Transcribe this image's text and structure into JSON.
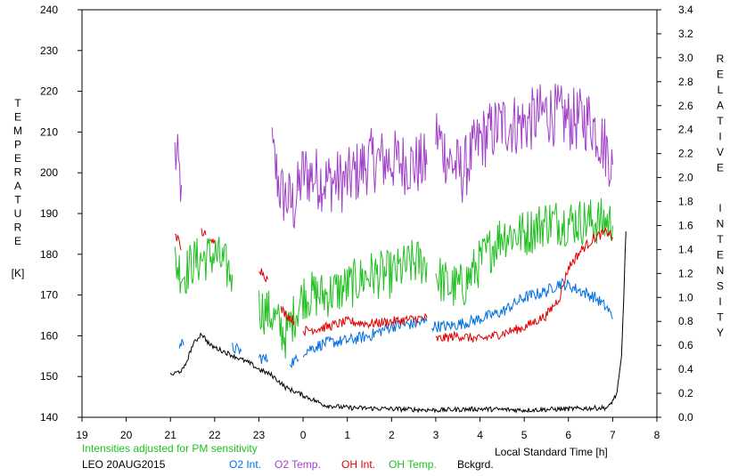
{
  "chart_data": {
    "type": "line",
    "left_axis": {
      "label_letters": [
        "T",
        "E",
        "M",
        "P",
        "E",
        "R",
        "A",
        "T",
        "U",
        "R",
        "E"
      ],
      "unit": "[K]",
      "ylim": [
        140,
        240
      ],
      "ticks": [
        "140",
        "150",
        "160",
        "170",
        "180",
        "190",
        "200",
        "210",
        "220",
        "230",
        "240"
      ]
    },
    "right_axis": {
      "label_words": [
        [
          "R",
          "E",
          "L",
          "A",
          "T",
          "I",
          "V",
          "E"
        ],
        [
          "I",
          "N",
          "T",
          "E",
          "N",
          "S",
          "I",
          "T",
          "Y"
        ]
      ],
      "ylim": [
        0.0,
        3.4
      ],
      "ticks": [
        "0.0",
        "0.2",
        "0.4",
        "0.6",
        "0.8",
        "1.0",
        "1.2",
        "1.4",
        "1.6",
        "1.8",
        "2.0",
        "2.2",
        "2.4",
        "2.6",
        "2.8",
        "3.0",
        "3.2",
        "3.4"
      ]
    },
    "x_axis": {
      "label": "Local Standard Time [h]",
      "ticks": [
        "19",
        "20",
        "21",
        "22",
        "23",
        "0",
        "1",
        "2",
        "3",
        "4",
        "5",
        "6",
        "7",
        "8"
      ]
    },
    "note": "Intensities adjusted for PM sensitivity",
    "site_date": "LEO 20AUG2015",
    "legend": [
      {
        "name": "O2 Int.",
        "color": "#0070e0"
      },
      {
        "name": "O2 Temp.",
        "color": "#a040c8"
      },
      {
        "name": "OH Int.",
        "color": "#e00000"
      },
      {
        "name": "OH Temp.",
        "color": "#20c020"
      },
      {
        "name": "Bckgrd.",
        "color": "#000000"
      }
    ],
    "series": [
      {
        "name": "O2 Temp.",
        "axis": "left",
        "color": "#a040c8",
        "noise": 8,
        "segments": [
          [
            [
              21.1,
              205
            ],
            [
              21.25,
              197
            ]
          ],
          [
            [
              23.3,
              205
            ],
            [
              23.5,
              195
            ],
            [
              23.8,
              192
            ],
            [
              24.0,
              200
            ],
            [
              24.5,
              198
            ],
            [
              25.0,
              198
            ],
            [
              25.5,
              203
            ],
            [
              26.0,
              203
            ],
            [
              26.5,
              202
            ],
            [
              26.8,
              202
            ]
          ],
          [
            [
              27.0,
              210
            ],
            [
              27.3,
              203
            ],
            [
              27.6,
              200
            ],
            [
              28.0,
              208
            ],
            [
              28.5,
              212
            ],
            [
              29.0,
              212
            ],
            [
              29.5,
              215
            ],
            [
              30.0,
              213
            ],
            [
              30.5,
              213
            ],
            [
              30.9,
              205
            ],
            [
              31.0,
              202
            ]
          ]
        ]
      },
      {
        "name": "OH Temp.",
        "axis": "left",
        "color": "#20c020",
        "noise": 6,
        "segments": [
          [
            [
              21.1,
              178
            ],
            [
              21.3,
              175
            ],
            [
              21.5,
              178
            ],
            [
              22.0,
              180
            ],
            [
              22.4,
              175
            ]
          ],
          [
            [
              23.0,
              180
            ]
          ],
          [
            [
              23.0,
              167
            ],
            [
              23.3,
              165
            ],
            [
              23.6,
              160
            ],
            [
              24.0,
              170
            ],
            [
              24.5,
              170
            ],
            [
              25.0,
              172
            ],
            [
              25.5,
              175
            ],
            [
              26.0,
              175
            ],
            [
              26.5,
              178
            ],
            [
              26.8,
              178
            ]
          ],
          [
            [
              27.0,
              175
            ],
            [
              27.3,
              172
            ],
            [
              27.6,
              172
            ],
            [
              28.0,
              178
            ],
            [
              28.5,
              185
            ],
            [
              29.0,
              185
            ],
            [
              29.5,
              188
            ],
            [
              30.0,
              188
            ],
            [
              30.5,
              188
            ],
            [
              30.9,
              188
            ],
            [
              31.0,
              187
            ]
          ]
        ]
      },
      {
        "name": "O2 Int.",
        "axis": "right",
        "color": "#0070e0",
        "noise": 0.05,
        "segments": [
          [
            [
              21.2,
              0.62
            ],
            [
              21.3,
              0.6
            ]
          ],
          [
            [
              22.4,
              0.58
            ],
            [
              22.6,
              0.55
            ]
          ],
          [
            [
              23.0,
              0.5
            ],
            [
              23.2,
              0.48
            ]
          ],
          [
            [
              23.7,
              0.46
            ],
            [
              23.9,
              0.48
            ]
          ],
          [
            [
              24.0,
              0.55
            ],
            [
              24.5,
              0.62
            ],
            [
              25.0,
              0.64
            ],
            [
              25.5,
              0.68
            ],
            [
              26.0,
              0.76
            ],
            [
              26.5,
              0.78
            ],
            [
              26.8,
              0.8
            ]
          ],
          [
            [
              26.9,
              0.76
            ],
            [
              27.3,
              0.76
            ],
            [
              27.8,
              0.8
            ],
            [
              28.5,
              0.88
            ],
            [
              29.0,
              1.0
            ],
            [
              29.5,
              1.05
            ],
            [
              29.8,
              1.12
            ],
            [
              30.0,
              1.1
            ],
            [
              30.3,
              1.05
            ],
            [
              30.6,
              1.0
            ],
            [
              30.9,
              0.9
            ],
            [
              31.0,
              0.82
            ]
          ]
        ]
      },
      {
        "name": "OH Int.",
        "axis": "right",
        "color": "#e00000",
        "noise": 0.04,
        "segments": [
          [
            [
              21.1,
              1.55
            ],
            [
              21.25,
              1.4
            ]
          ],
          [
            [
              21.7,
              1.55
            ],
            [
              21.8,
              1.52
            ]
          ],
          [
            [
              21.9,
              1.45
            ],
            [
              22.0,
              1.48
            ]
          ],
          [
            [
              23.0,
              1.25
            ],
            [
              23.2,
              1.15
            ]
          ],
          [
            [
              23.5,
              0.9
            ],
            [
              23.8,
              0.8
            ]
          ],
          [
            [
              24.0,
              0.72
            ],
            [
              24.5,
              0.75
            ],
            [
              25.0,
              0.8
            ],
            [
              25.5,
              0.78
            ],
            [
              26.0,
              0.8
            ],
            [
              26.5,
              0.82
            ],
            [
              26.8,
              0.83
            ]
          ],
          [
            [
              27.0,
              0.65
            ],
            [
              27.5,
              0.68
            ],
            [
              28.0,
              0.65
            ],
            [
              28.5,
              0.7
            ],
            [
              29.0,
              0.75
            ],
            [
              29.5,
              0.85
            ],
            [
              29.8,
              1.0
            ],
            [
              30.0,
              1.25
            ],
            [
              30.3,
              1.4
            ],
            [
              30.6,
              1.5
            ],
            [
              30.9,
              1.55
            ],
            [
              31.0,
              1.5
            ]
          ]
        ]
      },
      {
        "name": "Bckgrd.",
        "axis": "right",
        "color": "#000000",
        "noise": 0.02,
        "segments": [
          [
            [
              21.0,
              0.35
            ],
            [
              21.3,
              0.4
            ],
            [
              21.5,
              0.6
            ],
            [
              21.7,
              0.7
            ],
            [
              21.9,
              0.6
            ],
            [
              22.2,
              0.55
            ],
            [
              22.5,
              0.5
            ],
            [
              22.8,
              0.45
            ],
            [
              23.0,
              0.4
            ],
            [
              23.3,
              0.35
            ],
            [
              23.6,
              0.25
            ],
            [
              23.9,
              0.2
            ],
            [
              24.2,
              0.15
            ],
            [
              24.5,
              0.1
            ],
            [
              25.0,
              0.08
            ],
            [
              26.0,
              0.07
            ],
            [
              27.0,
              0.06
            ],
            [
              28.0,
              0.07
            ],
            [
              29.0,
              0.06
            ],
            [
              30.0,
              0.07
            ],
            [
              30.9,
              0.08
            ],
            [
              31.1,
              0.2
            ],
            [
              31.2,
              0.5
            ],
            [
              31.25,
              1.0
            ],
            [
              31.3,
              1.55
            ]
          ]
        ]
      }
    ]
  }
}
